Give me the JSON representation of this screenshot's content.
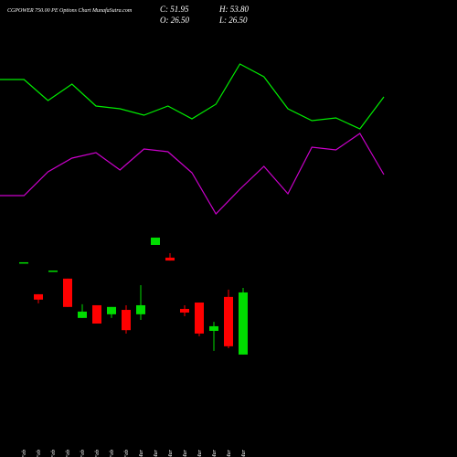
{
  "chart_data": [
    {
      "type": "line",
      "categories": [
        null,
        null,
        null,
        null,
        null,
        null,
        null,
        null,
        null,
        null,
        null,
        null,
        null,
        null,
        null,
        null,
        null
      ],
      "series": [
        {
          "color": "#00ee00",
          "values": [
            413,
            413,
            390,
            408,
            384,
            381,
            374,
            384,
            370,
            386,
            430,
            416,
            381,
            368,
            371,
            359,
            394
          ]
        },
        {
          "color": "#cc00cc",
          "values": [
            286,
            286,
            312,
            327,
            333,
            314,
            337,
            334,
            311,
            266,
            293,
            318,
            288,
            339,
            336,
            354,
            309
          ]
        }
      ],
      "ylim": [
        0,
        500
      ]
    },
    {
      "type": "candlestick",
      "title": "CGPOWER 750.00 PE Options Chart MunafaSutra.com",
      "annotations": [
        "C: 51.95",
        "H: 53.80",
        "O: 26.50",
        "L: 26.50"
      ],
      "categories": [
        "17 Feb",
        "18 Feb",
        "19 Feb",
        "20 Feb",
        "23 Feb",
        "24 Feb",
        "25 Feb",
        "26 Feb",
        "02 Mar",
        "04 Mar",
        "05 Mar",
        "06 Mar",
        "09 Mar",
        "10 Mar",
        "11 Mar",
        "12 Mar"
      ],
      "open": [
        64.3,
        51.2,
        60.9,
        57.6,
        41.5,
        46.7,
        43.0,
        44.8,
        43.0,
        71.4,
        66.2,
        45.2,
        47.8,
        36.2,
        50.1,
        26.5
      ],
      "high": [
        64.3,
        51.2,
        60.9,
        57.6,
        47.1,
        46.7,
        46.0,
        46.7,
        54.9,
        74.4,
        68.0,
        46.7,
        47.8,
        39.9,
        53.1,
        53.8
      ],
      "low": [
        64.3,
        47.5,
        60.9,
        46.0,
        41.5,
        39.2,
        41.5,
        35.1,
        40.7,
        71.4,
        65.0,
        42.2,
        34.0,
        28.0,
        29.1,
        26.5
      ],
      "close": [
        64.3,
        49.0,
        60.9,
        46.0,
        44.1,
        39.2,
        46.0,
        36.5,
        46.7,
        74.4,
        65.0,
        43.7,
        35.1,
        38.1,
        29.9,
        51.95
      ],
      "up_color": "#00dd00",
      "down_color": "#ff0000",
      "ylim": [
        10,
        80
      ]
    }
  ]
}
